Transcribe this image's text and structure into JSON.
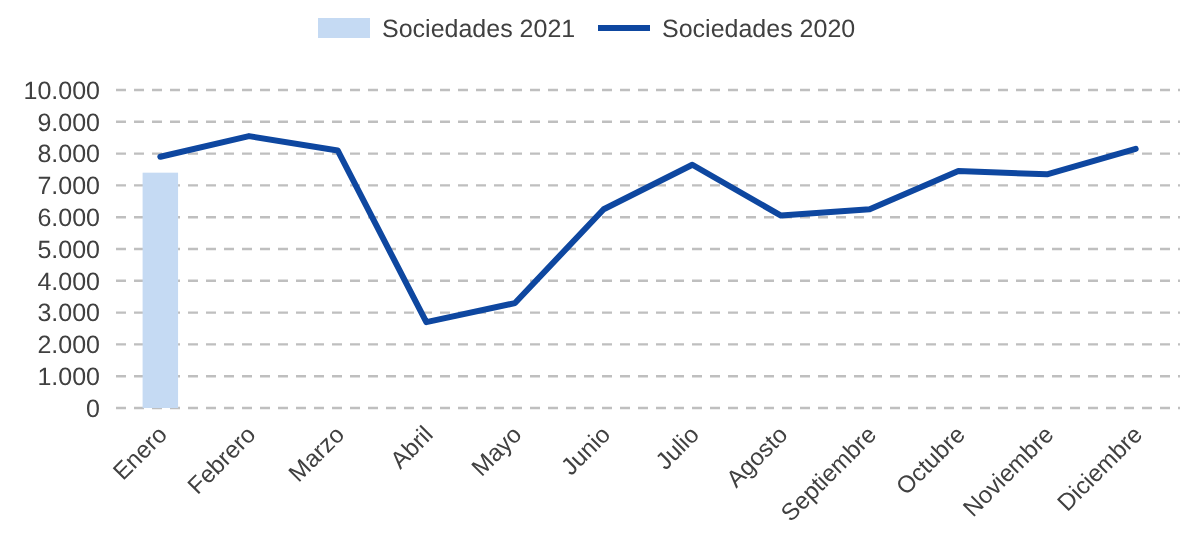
{
  "chart_data": {
    "type": "line",
    "categories": [
      "Enero",
      "Febrero",
      "Marzo",
      "Abril",
      "Mayo",
      "Junio",
      "Julio",
      "Agosto",
      "Septiembre",
      "Octubre",
      "Noviembre",
      "Diciembre"
    ],
    "series": [
      {
        "name": "Sociedades 2021",
        "type": "bar",
        "color": "#c5daf3",
        "values": [
          7400,
          null,
          null,
          null,
          null,
          null,
          null,
          null,
          null,
          null,
          null,
          null
        ]
      },
      {
        "name": "Sociedades 2020",
        "color": "#0e47a0",
        "values": [
          7900,
          8550,
          8100,
          2700,
          3300,
          6250,
          7650,
          6050,
          6250,
          7450,
          7350,
          8150
        ]
      }
    ],
    "ylim": [
      0,
      10000
    ],
    "yticks": [
      {
        "value": 0,
        "label": "0"
      },
      {
        "value": 1000,
        "label": "1.000"
      },
      {
        "value": 2000,
        "label": "2.000"
      },
      {
        "value": 3000,
        "label": "3.000"
      },
      {
        "value": 4000,
        "label": "4.000"
      },
      {
        "value": 5000,
        "label": "5.000"
      },
      {
        "value": 6000,
        "label": "6.000"
      },
      {
        "value": 7000,
        "label": "7.000"
      },
      {
        "value": 8000,
        "label": "8.000"
      },
      {
        "value": 9000,
        "label": "9.000"
      },
      {
        "value": 10000,
        "label": "10.000"
      }
    ],
    "grid": "y",
    "legend": "top"
  }
}
